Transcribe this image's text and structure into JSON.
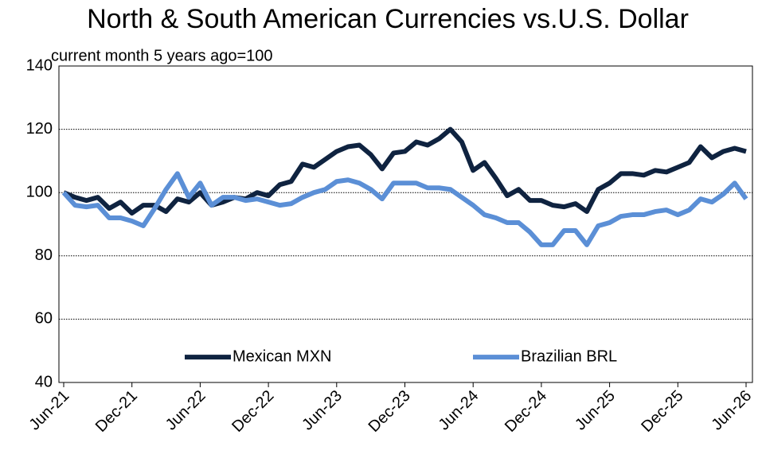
{
  "chart_data": {
    "type": "line",
    "title": "North & South American Currencies vs.U.S. Dollar",
    "subtitle": "current month 5 years ago=100",
    "categories": [
      "Jun-21",
      null,
      null,
      null,
      null,
      null,
      "Dec-21",
      null,
      null,
      null,
      null,
      null,
      "Jun-22",
      null,
      null,
      null,
      null,
      null,
      "Dec-22",
      null,
      null,
      null,
      null,
      null,
      "Jun-23",
      null,
      null,
      null,
      null,
      null,
      "Dec-23",
      null,
      null,
      null,
      null,
      null,
      "Jun-24",
      null,
      null,
      null,
      null,
      null,
      "Dec-24",
      null,
      null,
      null,
      null,
      null,
      "Jun-25",
      null,
      null,
      null,
      null,
      null,
      "Dec-25",
      null,
      null,
      null,
      null,
      null,
      "Jun-26"
    ],
    "series": [
      {
        "name": "Mexican MXN",
        "color": "#0f2340",
        "values": [
          100,
          98.5,
          97.5,
          98.5,
          95,
          97,
          93.5,
          96,
          96,
          94,
          98,
          97,
          100,
          96,
          97,
          98.5,
          98,
          100,
          99,
          102.5,
          103.5,
          109,
          108,
          110.5,
          113,
          114.5,
          115,
          112,
          107.5,
          112.5,
          113,
          116,
          115,
          117,
          120,
          116,
          107,
          109.5,
          104.5,
          99,
          101,
          97.5,
          97.5,
          96,
          95.5,
          96.5,
          94,
          101,
          103,
          106,
          106,
          105.5,
          107,
          106.5,
          108,
          109.5,
          114.5,
          111,
          113,
          114,
          113
        ]
      },
      {
        "name": "Brazilian BRL",
        "color": "#5b8fd6",
        "values": [
          100,
          96,
          95.5,
          96,
          92,
          92,
          91,
          89.5,
          95,
          101,
          106,
          98.5,
          103,
          96,
          98.5,
          98.5,
          97.5,
          98,
          97,
          96,
          96.5,
          98.5,
          100,
          101,
          103.5,
          104,
          103,
          101,
          98,
          103,
          103,
          103,
          101.5,
          101.5,
          101,
          98.5,
          96,
          93,
          92,
          90.5,
          90.5,
          87.5,
          83.5,
          83.5,
          88,
          88,
          83.5,
          89.5,
          90.5,
          92.5,
          93,
          93,
          94,
          94.5,
          93,
          94.5,
          98,
          97,
          99.5,
          103,
          98
        ]
      }
    ],
    "ylim": [
      40,
      140
    ],
    "yticks": [
      40,
      60,
      80,
      100,
      120,
      140
    ],
    "grid": true,
    "legend": "lower center"
  }
}
